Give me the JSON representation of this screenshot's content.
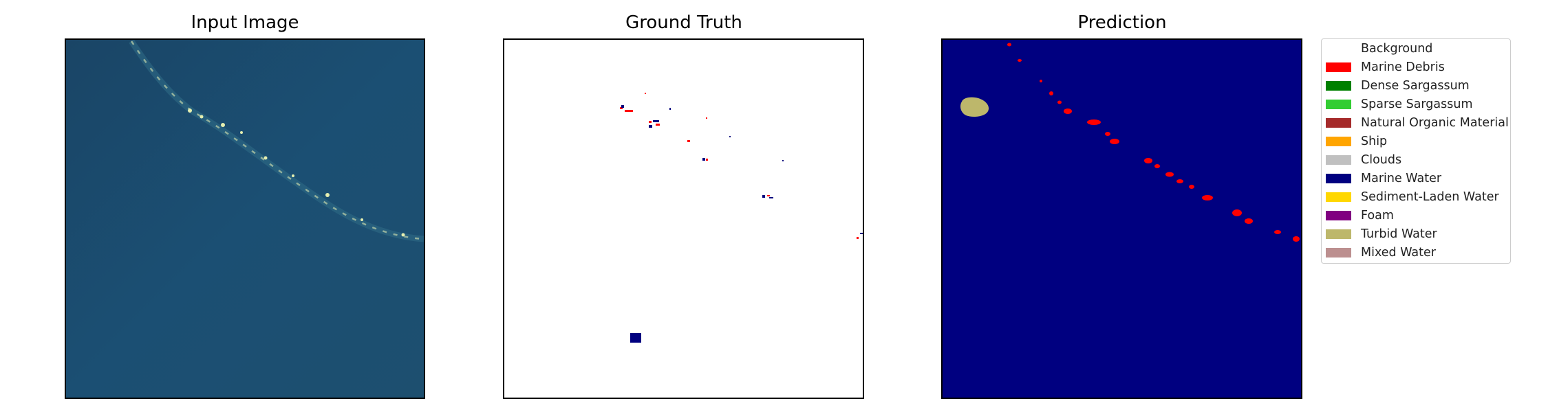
{
  "panels": {
    "input_title": "Input Image",
    "ground_truth_title": "Ground Truth",
    "prediction_title": "Prediction"
  },
  "legend": [
    {
      "label": "Background",
      "color": "#ffffff"
    },
    {
      "label": "Marine Debris",
      "color": "#ff0000"
    },
    {
      "label": "Dense Sargassum",
      "color": "#008000"
    },
    {
      "label": "Sparse Sargassum",
      "color": "#32cd32"
    },
    {
      "label": "Natural Organic Material",
      "color": "#a52a2a"
    },
    {
      "label": "Ship",
      "color": "#ffa500"
    },
    {
      "label": "Clouds",
      "color": "#c0c0c0"
    },
    {
      "label": "Marine Water",
      "color": "#000080"
    },
    {
      "label": "Sediment-Laden Water",
      "color": "#ffd700"
    },
    {
      "label": "Foam",
      "color": "#800080"
    },
    {
      "label": "Turbid Water",
      "color": "#bdb76b"
    },
    {
      "label": "Mixed Water",
      "color": "#bc8f8f"
    }
  ],
  "colors": {
    "input_water": "#1a4b6e",
    "input_streak": "#c8d89a",
    "marine_water": "#000080",
    "marine_debris": "#ff0000",
    "turbid_water": "#bdb76b"
  }
}
